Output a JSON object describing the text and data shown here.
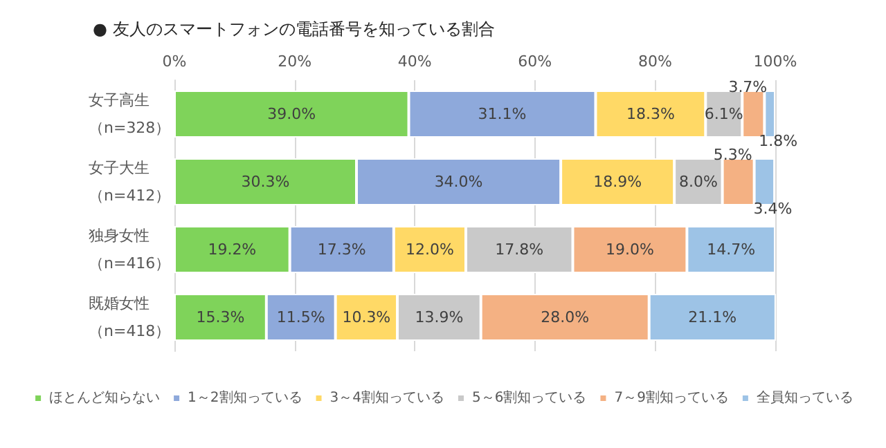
{
  "chart_data": {
    "type": "bar",
    "orientation": "horizontal",
    "stacked": true,
    "title": "● 友人のスマートフォンの電話番号を知っている割合",
    "categories": [
      "女子高生（n=328）",
      "女子大生（n=412）",
      "独身女性（n=416）",
      "既婚女性（n=418）"
    ],
    "series": [
      {
        "name": "ほとんど知らない",
        "color": "#7fd35a",
        "values": [
          39.0,
          30.3,
          19.2,
          15.3
        ],
        "value_labels": [
          "39.0%",
          "30.3%",
          "19.2%",
          "15.3%"
        ]
      },
      {
        "name": "1～2割知っている",
        "color": "#8ea9db",
        "values": [
          31.1,
          34.0,
          17.3,
          11.5
        ],
        "value_labels": [
          "31.1%",
          "34.0%",
          "17.3%",
          "11.5%"
        ]
      },
      {
        "name": "3～4割知っている",
        "color": "#ffd966",
        "values": [
          18.3,
          18.9,
          12.0,
          10.3
        ],
        "value_labels": [
          "18.3%",
          "18.9%",
          "12.0%",
          "10.3%"
        ]
      },
      {
        "name": "5～6割知っている",
        "color": "#c9c9c9",
        "values": [
          6.1,
          8.0,
          17.8,
          13.9
        ],
        "value_labels": [
          "6.1%",
          "8.0%",
          "17.8%",
          "13.9%"
        ]
      },
      {
        "name": "7～9割知っている",
        "color": "#f4b183",
        "values": [
          3.7,
          5.3,
          19.0,
          28.0
        ],
        "value_labels": [
          "3.7%",
          "5.3%",
          "19.0%",
          "28.0%"
        ]
      },
      {
        "name": "全員知っている",
        "color": "#9dc3e6",
        "values": [
          1.8,
          3.4,
          14.7,
          21.1
        ],
        "value_labels": [
          "1.8%",
          "3.4%",
          "14.7%",
          "21.1%"
        ]
      }
    ],
    "xlim": [
      0,
      100
    ],
    "xticks": [
      {
        "value": 0,
        "label": "0%"
      },
      {
        "value": 20,
        "label": "20%"
      },
      {
        "value": 40,
        "label": "40%"
      },
      {
        "value": 60,
        "label": "60%"
      },
      {
        "value": 80,
        "label": "80%"
      },
      {
        "value": 100,
        "label": "100%"
      }
    ],
    "grid": "x",
    "legend": "bottom"
  }
}
